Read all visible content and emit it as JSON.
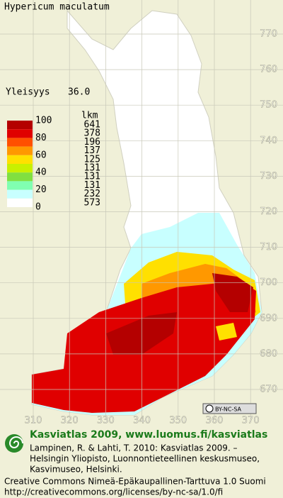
{
  "title": "Hypericum maculatum",
  "frequency": {
    "label": "Yleisyys",
    "value": "36.0"
  },
  "legend": {
    "scale_labels": [
      "100",
      "80",
      "60",
      "40",
      "20",
      "0"
    ],
    "count_header": "lkm",
    "counts": [
      641,
      378,
      196,
      137,
      125,
      131,
      131,
      131,
      232,
      573
    ],
    "colors": [
      "#b40000",
      "#e00000",
      "#ff5000",
      "#ff9800",
      "#ffe000",
      "#c8f000",
      "#80e040",
      "#80ffb0",
      "#c8ffff",
      "#ffffff"
    ]
  },
  "grid": {
    "x_labels": [
      "310",
      "320",
      "330",
      "340",
      "350",
      "360",
      "370"
    ],
    "y_labels": [
      "770",
      "760",
      "750",
      "740",
      "730",
      "720",
      "710",
      "700",
      "690",
      "680",
      "670"
    ]
  },
  "license_badge": "BY-NC-SA",
  "footer": {
    "heading": "Kasviatlas 2009, www.luomus.fi/kasviatlas",
    "citation": [
      "Lampinen, R. & Lahti, T. 2010: Kasviatlas 2009. –",
      "Helsingin Yliopisto, Luonnontieteellinen keskusmuseo,",
      "Kasvimuseo, Helsinki."
    ],
    "license": [
      "Creative Commons Nimeä-Epäkaupallinen-Tarttuva 1.0 Suomi",
      "http://creativecommons.org/licenses/by-nc-sa/1.0/fi"
    ]
  }
}
